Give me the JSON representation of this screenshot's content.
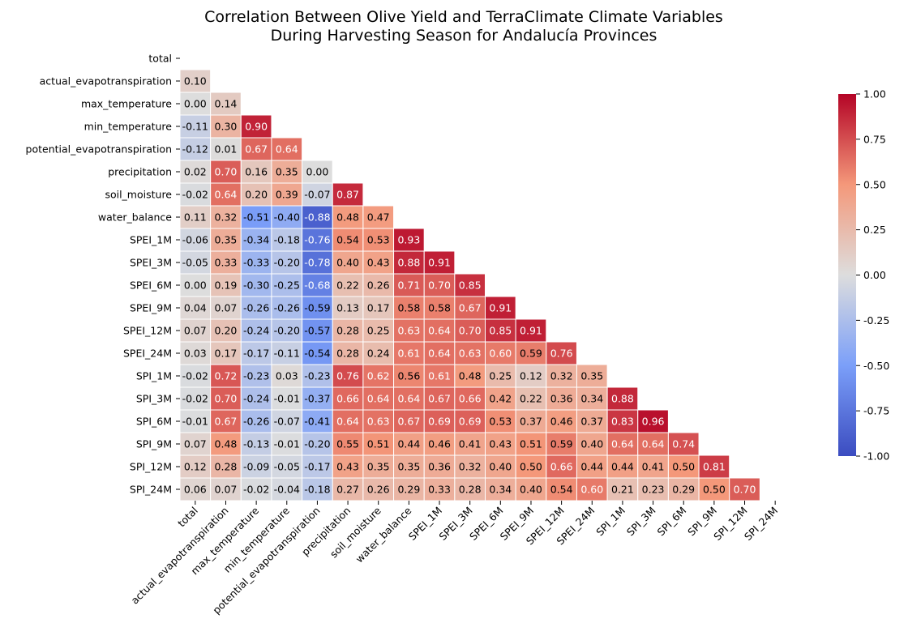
{
  "chart_data": {
    "type": "heatmap",
    "title_lines": [
      "Correlation Between Olive Yield and TerraClimate Climate Variables",
      "During Harvesting Season for Andalucía Provinces"
    ],
    "variables": [
      "total",
      "actual_evapotranspiration",
      "max_temperature",
      "min_temperature",
      "potential_evapotranspiration",
      "precipitation",
      "soil_moisture",
      "water_balance",
      "SPEI_1M",
      "SPEI_3M",
      "SPEI_6M",
      "SPEI_9M",
      "SPEI_12M",
      "SPEI_24M",
      "SPI_1M",
      "SPI_3M",
      "SPI_6M",
      "SPI_9M",
      "SPI_12M",
      "SPI_24M"
    ],
    "masked": "upper-triangle-including-diagonal",
    "lower_triangle_values": [
      [],
      [
        0.1
      ],
      [
        -0.0,
        0.14
      ],
      [
        -0.11,
        0.3,
        0.9
      ],
      [
        -0.12,
        0.01,
        0.67,
        0.64
      ],
      [
        0.02,
        0.7,
        0.16,
        0.35,
        0.0
      ],
      [
        -0.02,
        0.64,
        0.2,
        0.39,
        -0.07,
        0.87
      ],
      [
        0.11,
        0.32,
        -0.51,
        -0.4,
        -0.88,
        0.48,
        0.47
      ],
      [
        -0.06,
        0.35,
        -0.34,
        -0.18,
        -0.76,
        0.54,
        0.53,
        0.93
      ],
      [
        -0.05,
        0.33,
        -0.33,
        -0.2,
        -0.78,
        0.4,
        0.43,
        0.88,
        0.91
      ],
      [
        0.0,
        0.19,
        -0.3,
        -0.25,
        -0.68,
        0.22,
        0.26,
        0.71,
        0.7,
        0.85
      ],
      [
        0.04,
        0.07,
        -0.26,
        -0.26,
        -0.59,
        0.13,
        0.17,
        0.58,
        0.58,
        0.67,
        0.91
      ],
      [
        0.07,
        0.2,
        -0.24,
        -0.2,
        -0.57,
        0.28,
        0.25,
        0.63,
        0.64,
        0.7,
        0.85,
        0.91
      ],
      [
        0.03,
        0.17,
        -0.17,
        -0.11,
        -0.54,
        0.28,
        0.24,
        0.61,
        0.64,
        0.63,
        0.6,
        0.59,
        0.76
      ],
      [
        -0.02,
        0.72,
        -0.23,
        0.03,
        -0.23,
        0.76,
        0.62,
        0.56,
        0.61,
        0.48,
        0.25,
        0.12,
        0.32,
        0.35
      ],
      [
        -0.02,
        0.7,
        -0.24,
        -0.01,
        -0.37,
        0.66,
        0.64,
        0.64,
        0.67,
        0.66,
        0.42,
        0.22,
        0.36,
        0.34,
        0.88
      ],
      [
        -0.01,
        0.67,
        -0.26,
        -0.07,
        -0.41,
        0.64,
        0.63,
        0.67,
        0.69,
        0.69,
        0.53,
        0.37,
        0.46,
        0.37,
        0.83,
        0.96
      ],
      [
        0.07,
        0.48,
        -0.13,
        -0.01,
        -0.2,
        0.55,
        0.51,
        0.44,
        0.46,
        0.41,
        0.43,
        0.51,
        0.59,
        0.4,
        0.64,
        0.64,
        0.74
      ],
      [
        0.12,
        0.28,
        -0.09,
        -0.05,
        -0.17,
        0.43,
        0.35,
        0.35,
        0.36,
        0.32,
        0.4,
        0.5,
        0.66,
        0.44,
        0.44,
        0.41,
        0.5,
        0.81
      ],
      [
        0.06,
        0.07,
        -0.02,
        -0.04,
        -0.18,
        0.27,
        0.26,
        0.29,
        0.33,
        0.28,
        0.34,
        0.4,
        0.54,
        0.6,
        0.21,
        0.23,
        0.29,
        0.5,
        0.7
      ]
    ],
    "value_format": "2 decimals",
    "colormap": "coolwarm",
    "color_range": [
      -1.0,
      1.0
    ],
    "colorbar_ticks": [
      "-1.00",
      "-0.75",
      "-0.50",
      "-0.25",
      "0.00",
      "0.25",
      "0.50",
      "0.75",
      "1.00"
    ],
    "colorbar_tick_values": [
      -1.0,
      -0.75,
      -0.5,
      -0.25,
      0.0,
      0.25,
      0.5,
      0.75,
      1.0
    ],
    "colormap_stops": [
      [
        -1.0,
        "#3b4cc0"
      ],
      [
        -0.5,
        "#7b9ff9"
      ],
      [
        0.0,
        "#dddddd"
      ],
      [
        0.5,
        "#f4987a"
      ],
      [
        1.0,
        "#b40426"
      ]
    ],
    "grid_line_color": "#ffffff",
    "legend": "colorbar-right"
  }
}
